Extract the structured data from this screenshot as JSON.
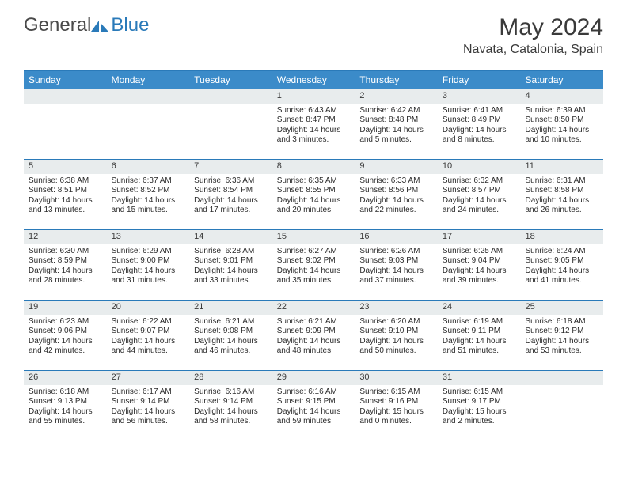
{
  "logo": {
    "general": "General",
    "blue": "Blue"
  },
  "title": "May 2024",
  "location": "Navata, Catalonia, Spain",
  "colors": {
    "header_bg": "#3b8bc9",
    "border": "#2a7ab9",
    "daynum_bg": "#e8eced",
    "text": "#2b2b2b"
  },
  "day_names": [
    "Sunday",
    "Monday",
    "Tuesday",
    "Wednesday",
    "Thursday",
    "Friday",
    "Saturday"
  ],
  "weeks": [
    [
      {
        "blank": true
      },
      {
        "blank": true
      },
      {
        "blank": true
      },
      {
        "n": "1",
        "sr": "6:43 AM",
        "ss": "8:47 PM",
        "dl": "14 hours and 3 minutes."
      },
      {
        "n": "2",
        "sr": "6:42 AM",
        "ss": "8:48 PM",
        "dl": "14 hours and 5 minutes."
      },
      {
        "n": "3",
        "sr": "6:41 AM",
        "ss": "8:49 PM",
        "dl": "14 hours and 8 minutes."
      },
      {
        "n": "4",
        "sr": "6:39 AM",
        "ss": "8:50 PM",
        "dl": "14 hours and 10 minutes."
      }
    ],
    [
      {
        "n": "5",
        "sr": "6:38 AM",
        "ss": "8:51 PM",
        "dl": "14 hours and 13 minutes."
      },
      {
        "n": "6",
        "sr": "6:37 AM",
        "ss": "8:52 PM",
        "dl": "14 hours and 15 minutes."
      },
      {
        "n": "7",
        "sr": "6:36 AM",
        "ss": "8:54 PM",
        "dl": "14 hours and 17 minutes."
      },
      {
        "n": "8",
        "sr": "6:35 AM",
        "ss": "8:55 PM",
        "dl": "14 hours and 20 minutes."
      },
      {
        "n": "9",
        "sr": "6:33 AM",
        "ss": "8:56 PM",
        "dl": "14 hours and 22 minutes."
      },
      {
        "n": "10",
        "sr": "6:32 AM",
        "ss": "8:57 PM",
        "dl": "14 hours and 24 minutes."
      },
      {
        "n": "11",
        "sr": "6:31 AM",
        "ss": "8:58 PM",
        "dl": "14 hours and 26 minutes."
      }
    ],
    [
      {
        "n": "12",
        "sr": "6:30 AM",
        "ss": "8:59 PM",
        "dl": "14 hours and 28 minutes."
      },
      {
        "n": "13",
        "sr": "6:29 AM",
        "ss": "9:00 PM",
        "dl": "14 hours and 31 minutes."
      },
      {
        "n": "14",
        "sr": "6:28 AM",
        "ss": "9:01 PM",
        "dl": "14 hours and 33 minutes."
      },
      {
        "n": "15",
        "sr": "6:27 AM",
        "ss": "9:02 PM",
        "dl": "14 hours and 35 minutes."
      },
      {
        "n": "16",
        "sr": "6:26 AM",
        "ss": "9:03 PM",
        "dl": "14 hours and 37 minutes."
      },
      {
        "n": "17",
        "sr": "6:25 AM",
        "ss": "9:04 PM",
        "dl": "14 hours and 39 minutes."
      },
      {
        "n": "18",
        "sr": "6:24 AM",
        "ss": "9:05 PM",
        "dl": "14 hours and 41 minutes."
      }
    ],
    [
      {
        "n": "19",
        "sr": "6:23 AM",
        "ss": "9:06 PM",
        "dl": "14 hours and 42 minutes."
      },
      {
        "n": "20",
        "sr": "6:22 AM",
        "ss": "9:07 PM",
        "dl": "14 hours and 44 minutes."
      },
      {
        "n": "21",
        "sr": "6:21 AM",
        "ss": "9:08 PM",
        "dl": "14 hours and 46 minutes."
      },
      {
        "n": "22",
        "sr": "6:21 AM",
        "ss": "9:09 PM",
        "dl": "14 hours and 48 minutes."
      },
      {
        "n": "23",
        "sr": "6:20 AM",
        "ss": "9:10 PM",
        "dl": "14 hours and 50 minutes."
      },
      {
        "n": "24",
        "sr": "6:19 AM",
        "ss": "9:11 PM",
        "dl": "14 hours and 51 minutes."
      },
      {
        "n": "25",
        "sr": "6:18 AM",
        "ss": "9:12 PM",
        "dl": "14 hours and 53 minutes."
      }
    ],
    [
      {
        "n": "26",
        "sr": "6:18 AM",
        "ss": "9:13 PM",
        "dl": "14 hours and 55 minutes."
      },
      {
        "n": "27",
        "sr": "6:17 AM",
        "ss": "9:14 PM",
        "dl": "14 hours and 56 minutes."
      },
      {
        "n": "28",
        "sr": "6:16 AM",
        "ss": "9:14 PM",
        "dl": "14 hours and 58 minutes."
      },
      {
        "n": "29",
        "sr": "6:16 AM",
        "ss": "9:15 PM",
        "dl": "14 hours and 59 minutes."
      },
      {
        "n": "30",
        "sr": "6:15 AM",
        "ss": "9:16 PM",
        "dl": "15 hours and 0 minutes."
      },
      {
        "n": "31",
        "sr": "6:15 AM",
        "ss": "9:17 PM",
        "dl": "15 hours and 2 minutes."
      },
      {
        "blank": true
      }
    ]
  ],
  "labels": {
    "sunrise": "Sunrise: ",
    "sunset": "Sunset: ",
    "daylight": "Daylight: "
  }
}
